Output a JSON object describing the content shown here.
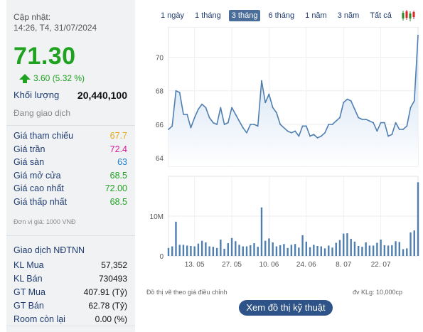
{
  "quote": {
    "update_label": "Cập nhật:",
    "update_time": "14:26, T4, 31/07/2024",
    "price": "71.30",
    "change": "3.60 (5.32 %)",
    "volume_label": "Khối lượng",
    "volume_value": "20,440,100",
    "status": "Đang giao dịch",
    "price_color": "#1fa21f"
  },
  "price_rows": [
    {
      "label": "Giá tham chiếu",
      "value": "67.7",
      "color": "#e6a817"
    },
    {
      "label": "Giá trần",
      "value": "72.4",
      "color": "#d6199a"
    },
    {
      "label": "Giá sàn",
      "value": "63",
      "color": "#1e7fd1"
    },
    {
      "label": "Giá mở cửa",
      "value": "68.5",
      "color": "#1fa21f"
    },
    {
      "label": "Giá cao nhất",
      "value": "72.00",
      "color": "#1fa21f"
    },
    {
      "label": "Giá thấp nhất",
      "value": "68.5",
      "color": "#1fa21f"
    }
  ],
  "unit_note": "Đơn vị giá: 1000 VNĐ",
  "foreign": {
    "title": "Giao dịch NĐTNN",
    "rows": [
      {
        "label": "KL Mua",
        "value": "57,352"
      },
      {
        "label": "KL Bán",
        "value": "730493"
      },
      {
        "label": "GT Mua",
        "value": "407.91 (Tỷ)"
      },
      {
        "label": "GT Bán",
        "value": "62.78 (Tỷ)"
      },
      {
        "label": "Room còn lại",
        "value": "0.00 (%)"
      }
    ]
  },
  "tabs": [
    {
      "label": "1 ngày",
      "active": false
    },
    {
      "label": "1 tháng",
      "active": false
    },
    {
      "label": "3 tháng",
      "active": true
    },
    {
      "label": "6 tháng",
      "active": false
    },
    {
      "label": "1 năm",
      "active": false
    },
    {
      "label": "3 năm",
      "active": false
    },
    {
      "label": "Tất cả",
      "active": false
    }
  ],
  "chart_type_icon": "candlestick-icon",
  "footer": {
    "note_left": "Đồ thị vẽ theo giá điều chỉnh",
    "note_right": "đv KLg: 10,000cp",
    "button": "Xem đồ thị kỹ thuật"
  },
  "chart_data": {
    "type": "area",
    "price_ticks": [
      "64",
      "66",
      "68",
      "70"
    ],
    "price_ylim": [
      63.5,
      71.8
    ],
    "volume_ticks": [
      "0",
      "10M"
    ],
    "volume_ylim": [
      0,
      20000000
    ],
    "x_tick_labels": [
      "13. 05",
      "27. 05",
      "10. 06",
      "24. 06",
      "8. 07",
      "22. 07"
    ],
    "x_tick_indices": [
      7,
      17,
      27,
      37,
      47,
      57
    ],
    "price": [
      65.7,
      65.9,
      68.0,
      67.9,
      66.6,
      66.6,
      65.8,
      66.4,
      66.9,
      67.2,
      67.0,
      66.4,
      66.1,
      66.0,
      67.0,
      66.0,
      66.1,
      67.0,
      66.6,
      66.2,
      65.8,
      65.5,
      66.0,
      66.0,
      65.9,
      68.6,
      67.3,
      67.8,
      67.0,
      66.7,
      66.0,
      65.8,
      65.6,
      65.5,
      65.6,
      65.3,
      65.9,
      65.9,
      65.3,
      65.4,
      65.2,
      65.3,
      65.5,
      66.0,
      66.0,
      66.2,
      66.4,
      67.3,
      67.5,
      67.4,
      66.9,
      66.4,
      66.3,
      66.3,
      66.2,
      66.1,
      65.6,
      66.1,
      66.1,
      65.3,
      65.4,
      66.1,
      65.7,
      65.7,
      65.9,
      67.0,
      67.4,
      71.3
    ],
    "volume": [
      2000000,
      2400000,
      8600000,
      2800000,
      2800000,
      2600000,
      2500000,
      2400000,
      3100000,
      3800000,
      3400000,
      2400000,
      2300000,
      2000000,
      4100000,
      1800000,
      3200000,
      4500000,
      3700000,
      2800000,
      2400000,
      2400000,
      2700000,
      3200000,
      2300000,
      12200000,
      3800000,
      4400000,
      3400000,
      2400000,
      2700000,
      3000000,
      2000000,
      2800000,
      3000000,
      2100000,
      5200000,
      3600000,
      2200000,
      2800000,
      2500000,
      2400000,
      1900000,
      2600000,
      2100000,
      3300000,
      4000000,
      5600000,
      5700000,
      4300000,
      3600000,
      2500000,
      2300000,
      3400000,
      2600000,
      2600000,
      3300000,
      4100000,
      2700000,
      2600000,
      2700000,
      3700000,
      3500000,
      1700000,
      1900000,
      5900000,
      6400000,
      18500000
    ]
  }
}
